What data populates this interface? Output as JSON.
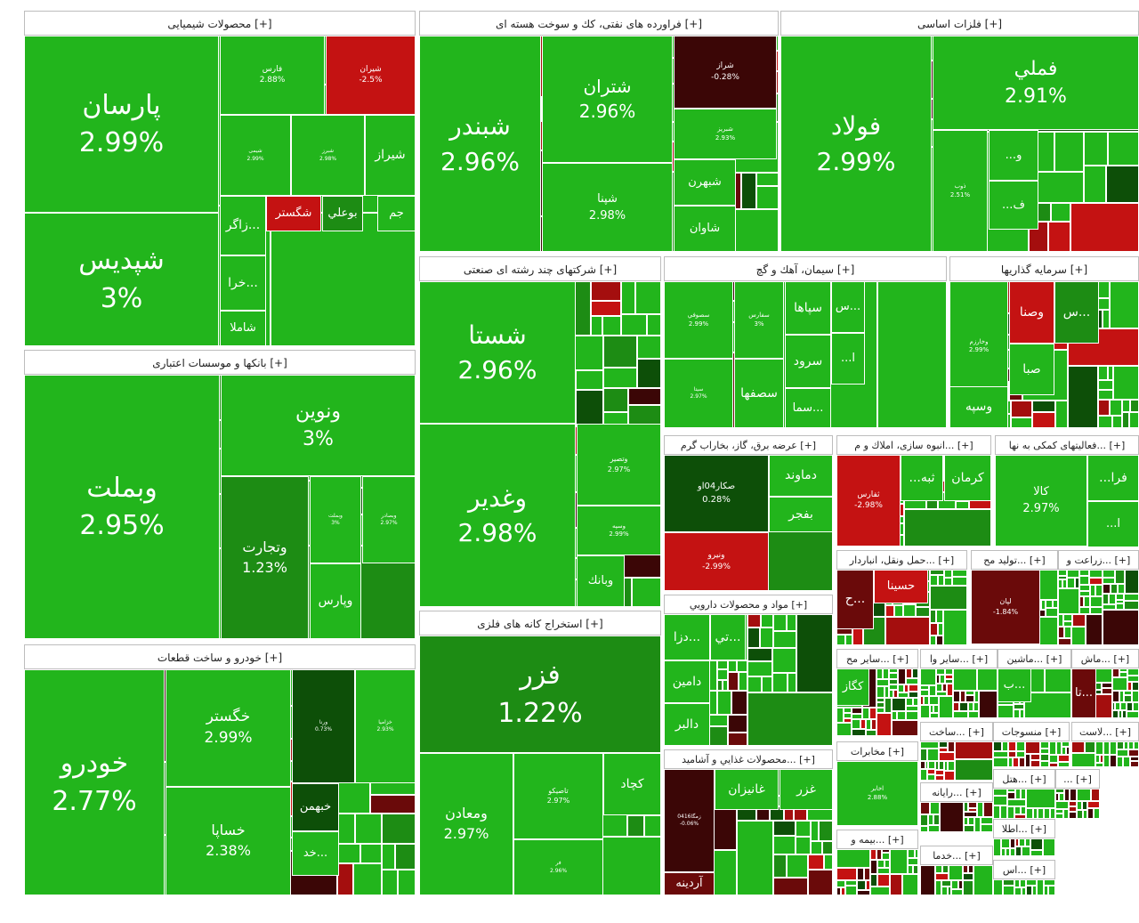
{
  "colors": {
    "g": "#22b51c",
    "dg": "#1d8c14",
    "vdg": "#0d4f08",
    "lr": "#c41212",
    "r": "#a40e0e",
    "dr": "#6a0a0a",
    "vdr": "#3b0606"
  },
  "sectors": [
    {
      "title": "محصولات شیمیایی [+]",
      "tiles": [
        {
          "n": "پارسان",
          "p": "2.99%",
          "c": "g"
        },
        {
          "n": "شپدیس",
          "p": "3%",
          "c": "g"
        },
        {
          "n": "فارس",
          "p": "2.88%",
          "c": "g"
        },
        {
          "n": "شیران",
          "p": "-2.5%",
          "c": "lr"
        },
        {
          "n": "شیراز",
          "p": "",
          "c": "g"
        },
        {
          "n": "شگستر",
          "p": "",
          "c": "lr"
        },
        {
          "n": "بوعلي",
          "p": "",
          "c": "dg"
        },
        {
          "n": "جم",
          "p": "",
          "c": "g"
        },
        {
          "n": "زاگر...",
          "p": "",
          "c": "g"
        },
        {
          "n": "خرا...",
          "p": "",
          "c": "g"
        },
        {
          "n": "شاملا",
          "p": "",
          "c": "g"
        },
        {
          "n": "شیمی",
          "p": "2.99%",
          "c": "g"
        },
        {
          "n": "شبرز",
          "p": "2.98%",
          "c": "g"
        }
      ]
    },
    {
      "title": "فراورده های نفتی، كك و سوخت هسته ای [+]",
      "tiles": [
        {
          "n": "شبندر",
          "p": "2.96%",
          "c": "g"
        },
        {
          "n": "شتران",
          "p": "2.96%",
          "c": "g"
        },
        {
          "n": "شپنا",
          "p": "2.98%",
          "c": "g"
        },
        {
          "n": "شراز",
          "p": "-0.28%",
          "c": "vdr"
        },
        {
          "n": "شبریز",
          "p": "2.93%",
          "c": "g"
        },
        {
          "n": "شبهرن",
          "p": "",
          "c": "g"
        },
        {
          "n": "شاوان",
          "p": "",
          "c": "g"
        }
      ]
    },
    {
      "title": "فلزات اساسی [+]",
      "tiles": [
        {
          "n": "فولاد",
          "p": "2.99%",
          "c": "g"
        },
        {
          "n": "فملي",
          "p": "2.91%",
          "c": "g"
        },
        {
          "n": "ذوب",
          "p": "2.51%",
          "c": "g"
        },
        {
          "n": "...و",
          "p": "",
          "c": "g"
        },
        {
          "n": "...ف",
          "p": "",
          "c": "g"
        }
      ]
    },
    {
      "title": "شرکتهای چند رشته ای صنعتی [+]",
      "tiles": [
        {
          "n": "شستا",
          "p": "2.96%",
          "c": "g"
        },
        {
          "n": "وغدير",
          "p": "2.98%",
          "c": "g"
        },
        {
          "n": "وتصير",
          "p": "2.97%",
          "c": "g"
        },
        {
          "n": "وسپه",
          "p": "2.99%",
          "c": "g"
        },
        {
          "n": "وبانك",
          "p": "",
          "c": "g"
        }
      ]
    },
    {
      "title": "سیمان، آهك و گچ [+]",
      "tiles": [
        {
          "n": "سصوفي",
          "p": "2.99%",
          "c": "g"
        },
        {
          "n": "سفارس",
          "p": "3%",
          "c": "g"
        },
        {
          "n": "سپاها",
          "p": "",
          "c": "g"
        },
        {
          "n": "سرود",
          "p": "",
          "c": "g"
        },
        {
          "n": "سما...",
          "p": "",
          "c": "g"
        },
        {
          "n": "سيتا",
          "p": "2.97%",
          "c": "g"
        },
        {
          "n": "سصفها",
          "p": "",
          "c": "g"
        },
        {
          "n": "س...",
          "p": "",
          "c": "g"
        },
        {
          "n": "...ا",
          "p": "",
          "c": "g"
        }
      ]
    },
    {
      "title": "سرمایه گذاریها [+]",
      "tiles": [
        {
          "n": "وخارزم",
          "p": "2.99%",
          "c": "g"
        },
        {
          "n": "وصنا",
          "p": "",
          "c": "lr"
        },
        {
          "n": "س...",
          "p": "",
          "c": "dg"
        },
        {
          "n": "صبا",
          "p": "",
          "c": "g"
        },
        {
          "n": "وسپه",
          "p": "",
          "c": "g"
        }
      ]
    },
    {
      "title": "بانکها و موسسات اعتباری [+]",
      "tiles": [
        {
          "n": "وبملت",
          "p": "2.95%",
          "c": "g"
        },
        {
          "n": "ونوين",
          "p": "3%",
          "c": "g"
        },
        {
          "n": "وتجارت",
          "p": "1.23%",
          "c": "dg"
        },
        {
          "n": "وبملت",
          "p": "3%",
          "c": "g"
        },
        {
          "n": "وبصادر",
          "p": "2.97%",
          "c": "g"
        },
        {
          "n": "وپارس",
          "p": "",
          "c": "g"
        }
      ]
    },
    {
      "title": "عرضه برق، گاز، بخاراب گرم [+]",
      "tiles": [
        {
          "n": "صكار04او",
          "p": "0.28%",
          "c": "vdg"
        },
        {
          "n": "دماوند",
          "p": "",
          "c": "g"
        },
        {
          "n": "بفجر",
          "p": "",
          "c": "g"
        },
        {
          "n": "ونيرو",
          "p": "-2.99%",
          "c": "lr"
        }
      ]
    },
    {
      "title": "انبوه سازی، املاك و م... [+]",
      "tiles": [
        {
          "n": "ثفارس",
          "p": "-2.98%",
          "c": "lr"
        },
        {
          "n": "...ثبه",
          "p": "",
          "c": "g"
        },
        {
          "n": "كرمان",
          "p": "",
          "c": "g"
        }
      ]
    },
    {
      "title": "فعالیتهای كمكی به نها... [+]",
      "tiles": [
        {
          "n": "كالا",
          "p": "2.97%",
          "c": "g"
        },
        {
          "n": "...فرا",
          "p": "",
          "c": "g"
        },
        {
          "n": "...ا",
          "p": "",
          "c": "g"
        }
      ]
    },
    {
      "title": "خودرو و ساخت قطعات [+]",
      "tiles": [
        {
          "n": "خودرو",
          "p": "2.77%",
          "c": "g"
        },
        {
          "n": "خگستر",
          "p": "2.99%",
          "c": "g"
        },
        {
          "n": "خساپا",
          "p": "2.38%",
          "c": "g"
        },
        {
          "n": "ورنا",
          "p": "0.73%",
          "c": "vdg"
        },
        {
          "n": "خزاميا",
          "p": "2.93%",
          "c": "g"
        },
        {
          "n": "خبهمن",
          "p": "",
          "c": "vdg"
        },
        {
          "n": "خد...",
          "p": "",
          "c": "g"
        }
      ]
    },
    {
      "title": "استخراج كانه های فلزی [+]",
      "tiles": [
        {
          "n": "فزر",
          "p": "1.22%",
          "c": "dg"
        },
        {
          "n": "ومعادن",
          "p": "2.97%",
          "c": "g"
        },
        {
          "n": "تاصيكو",
          "p": "2.97%",
          "c": "g"
        },
        {
          "n": "كچاد",
          "p": "",
          "c": "g"
        },
        {
          "n": "فر",
          "p": "2.96%",
          "c": "g"
        }
      ]
    },
    {
      "title": "مواد و محصولات دارويي [+]",
      "tiles": [
        {
          "n": "تي...",
          "p": "",
          "c": "g"
        },
        {
          "n": "دزا...",
          "p": "",
          "c": "g"
        },
        {
          "n": "دامين",
          "p": "",
          "c": "g"
        },
        {
          "n": "دالبر",
          "p": "",
          "c": "g"
        }
      ]
    },
    {
      "title": "محصولات غذايي و آشاميد... [+]",
      "tiles": [
        {
          "n": "زمگا0416",
          "p": "-0.06%",
          "c": "vdr"
        },
        {
          "n": "غانيزان",
          "p": "",
          "c": "g"
        },
        {
          "n": "غزر",
          "p": "",
          "c": "g"
        },
        {
          "n": "آردينه",
          "p": "",
          "c": "dr"
        }
      ]
    },
    {
      "title": "حمل ونقل، انباردار... [+]",
      "tiles": [
        {
          "n": "حسينا",
          "p": "",
          "c": "lr"
        },
        {
          "n": "ح...",
          "p": "",
          "c": "dr"
        }
      ]
    },
    {
      "title": "توليد مح... [+]",
      "tiles": [
        {
          "n": "لپان",
          "p": "-1.84%",
          "c": "dr"
        }
      ]
    },
    {
      "title": "زراعت و... [+]",
      "tiles": []
    },
    {
      "title": "ساير مح... [+]",
      "tiles": [
        {
          "n": "كگاز",
          "p": "",
          "c": "g"
        }
      ]
    },
    {
      "title": "ساير وا... [+]",
      "tiles": []
    },
    {
      "title": "ماشين... [+]",
      "tiles": [
        {
          "n": "ب...",
          "p": "",
          "c": "g"
        }
      ]
    },
    {
      "title": "ماش... [+]",
      "tiles": [
        {
          "n": "تا...",
          "p": "",
          "c": "dr"
        }
      ]
    },
    {
      "title": "مخابرات [+]",
      "tiles": [
        {
          "n": "اخابر",
          "p": "2.88%",
          "c": "g"
        }
      ]
    },
    {
      "title": "ساخت... [+]",
      "tiles": []
    },
    {
      "title": "منسوجات [+]",
      "tiles": []
    },
    {
      "title": "لاست... [+]",
      "tiles": []
    },
    {
      "title": "رايانه... [+]",
      "tiles": []
    },
    {
      "title": "هتل... [+]",
      "tiles": []
    },
    {
      "title": "... [+]",
      "tiles": []
    },
    {
      "title": "بيمه و... [+]",
      "tiles": []
    },
    {
      "title": "اطلا... [+]",
      "tiles": []
    },
    {
      "title": "خدما... [+]",
      "tiles": []
    },
    {
      "title": "اس... [+]",
      "tiles": []
    }
  ]
}
